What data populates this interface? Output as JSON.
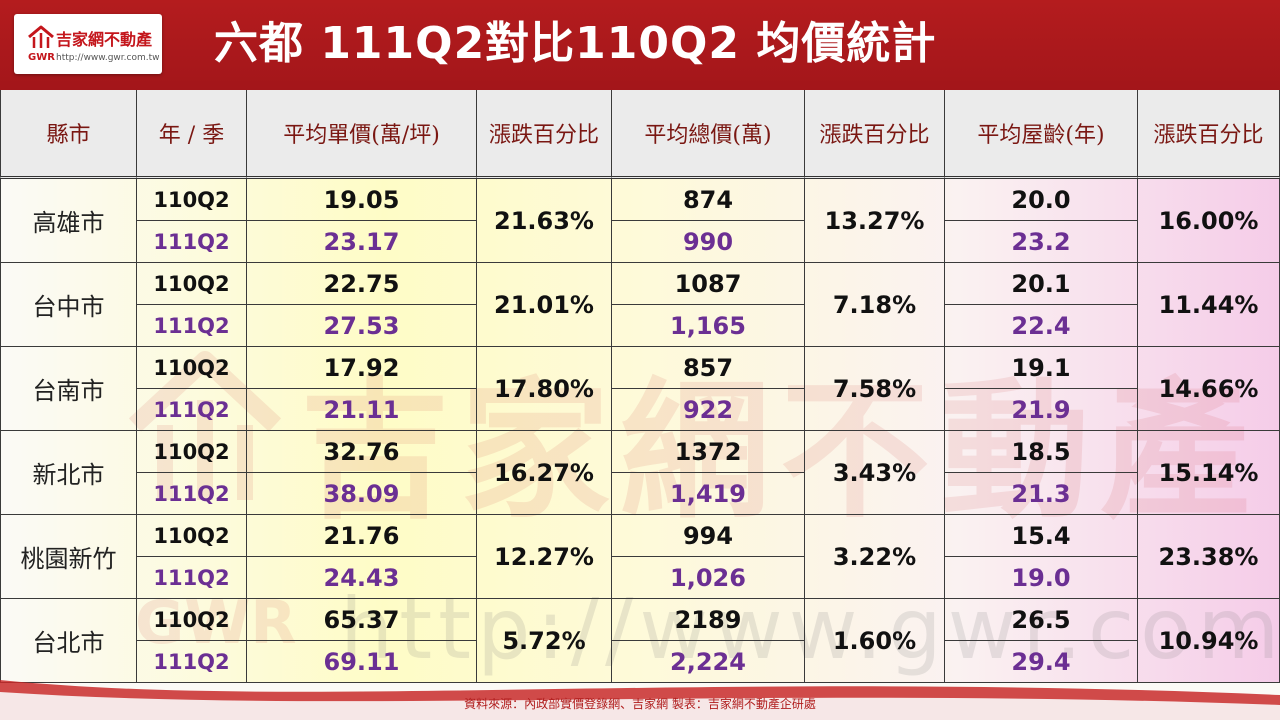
{
  "header": {
    "logo_name": "吉家網不動產",
    "logo_abbr": "GWR",
    "logo_url": "http://www.gwr.com.tw",
    "title": "六都 111Q2對比110Q2 均價統計"
  },
  "table": {
    "columns": [
      "縣市",
      "年 / 季",
      "平均單價(萬/坪)",
      "漲跌百分比",
      "平均總價(萬)",
      "漲跌百分比",
      "平均屋齡(年)",
      "漲跌百分比"
    ],
    "rows": [
      {
        "city": "高雄市",
        "p1": "110Q2",
        "p2": "111Q2",
        "unit1": "19.05",
        "unit2": "23.17",
        "unit_pct": "21.63%",
        "total1": "874",
        "total2": "990",
        "total_pct": "13.27%",
        "age1": "20.0",
        "age2": "23.2",
        "age_pct": "16.00%"
      },
      {
        "city": "台中市",
        "p1": "110Q2",
        "p2": "111Q2",
        "unit1": "22.75",
        "unit2": "27.53",
        "unit_pct": "21.01%",
        "total1": "1087",
        "total2": "1,165",
        "total_pct": "7.18%",
        "age1": "20.1",
        "age2": "22.4",
        "age_pct": "11.44%"
      },
      {
        "city": "台南市",
        "p1": "110Q2",
        "p2": "111Q2",
        "unit1": "17.92",
        "unit2": "21.11",
        "unit_pct": "17.80%",
        "total1": "857",
        "total2": "922",
        "total_pct": "7.58%",
        "age1": "19.1",
        "age2": "21.9",
        "age_pct": "14.66%"
      },
      {
        "city": "新北市",
        "p1": "110Q2",
        "p2": "111Q2",
        "unit1": "32.76",
        "unit2": "38.09",
        "unit_pct": "16.27%",
        "total1": "1372",
        "total2": "1,419",
        "total_pct": "3.43%",
        "age1": "18.5",
        "age2": "21.3",
        "age_pct": "15.14%"
      },
      {
        "city": "桃園新竹",
        "p1": "110Q2",
        "p2": "111Q2",
        "unit1": "21.76",
        "unit2": "24.43",
        "unit_pct": "12.27%",
        "total1": "994",
        "total2": "1,026",
        "total_pct": "3.22%",
        "age1": "15.4",
        "age2": "19.0",
        "age_pct": "23.38%"
      },
      {
        "city": "台北市",
        "p1": "110Q2",
        "p2": "111Q2",
        "unit1": "65.37",
        "unit2": "69.11",
        "unit_pct": "5.72%",
        "total1": "2189",
        "total2": "2,224",
        "total_pct": "1.60%",
        "age1": "26.5",
        "age2": "29.4",
        "age_pct": "10.94%"
      }
    ]
  },
  "watermark": {
    "name": "吉家網不動產",
    "abbr": "GWR",
    "url": "http://www.gwr.com.tw"
  },
  "footer": {
    "source": "資料來源：內政部實價登錄網、吉家網  製表：吉家網不動產企研處"
  },
  "colors": {
    "header_red": "#b41c1e",
    "header_text": "#7a1712",
    "new_period_purple": "#6b2f93"
  }
}
